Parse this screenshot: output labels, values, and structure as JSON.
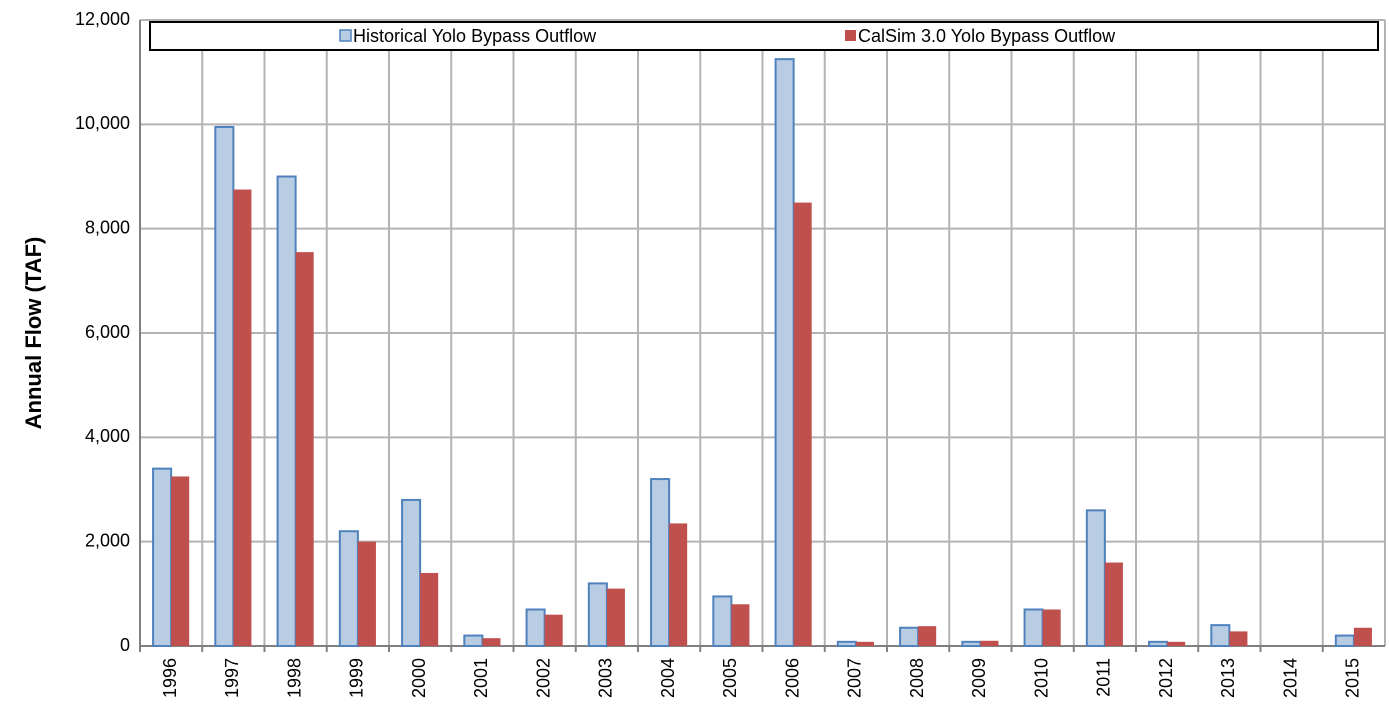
{
  "chart_data": {
    "type": "bar",
    "y_label": "Annual Flow (TAF)",
    "categories": [
      "1996",
      "1997",
      "1998",
      "1999",
      "2000",
      "2001",
      "2002",
      "2003",
      "2004",
      "2005",
      "2006",
      "2007",
      "2008",
      "2009",
      "2010",
      "2011",
      "2012",
      "2013",
      "2014",
      "2015"
    ],
    "series": [
      {
        "name": "Historical Yolo Bypass Outflow",
        "color": "#b8cce4",
        "edgecolor": "#4f81bd",
        "values": [
          3400,
          9950,
          9000,
          2200,
          2800,
          200,
          700,
          1200,
          3200,
          950,
          11250,
          80,
          350,
          80,
          700,
          2600,
          80,
          400,
          0,
          200
        ]
      },
      {
        "name": "CalSim 3.0 Yolo Bypass Outflow",
        "color": "#c0504d",
        "values": [
          3250,
          8750,
          7550,
          2000,
          1400,
          150,
          600,
          1100,
          2350,
          800,
          8500,
          80,
          380,
          100,
          700,
          1600,
          80,
          280,
          0,
          350
        ]
      }
    ],
    "ylim": [
      0,
      12000
    ],
    "yticks": [
      0,
      {
        "value": 2000,
        "label": "2,000"
      },
      {
        "value": 4000,
        "label": "4,000"
      },
      {
        "value": 6000,
        "label": "6,000"
      },
      {
        "value": 8000,
        "label": "8,000"
      },
      {
        "value": 10000,
        "label": "10,000"
      },
      {
        "value": 12000,
        "label": "12,000"
      }
    ],
    "grid": true,
    "legend": "top"
  }
}
